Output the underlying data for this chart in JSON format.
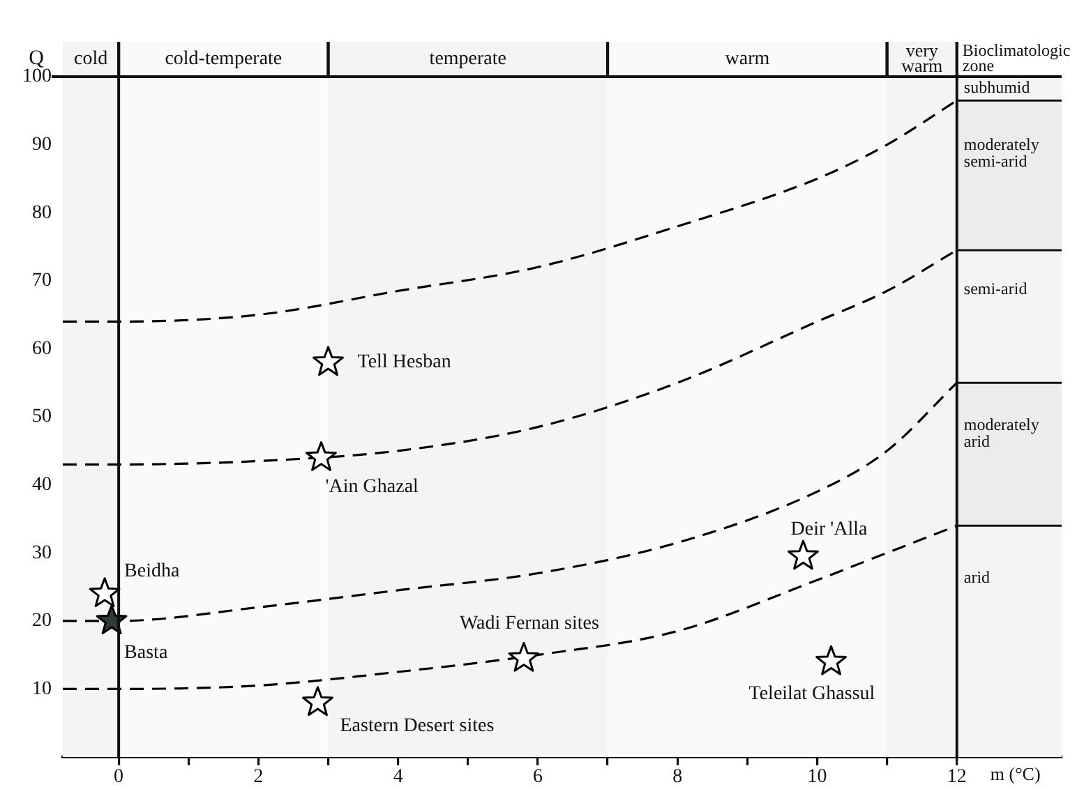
{
  "chart_data": {
    "type": "scatter",
    "xlabel": "m (°C)",
    "ylabel": "Q",
    "xlim": [
      -0.8,
      13.5
    ],
    "ylim": [
      0,
      100
    ],
    "xticks": [
      0,
      {
        "value": 1,
        "label": null
      },
      2,
      {
        "value": 3,
        "label": null
      },
      4,
      {
        "value": 5,
        "label": null
      },
      6,
      {
        "value": 7,
        "label": null
      },
      8,
      {
        "value": 9,
        "label": null
      },
      10,
      {
        "value": 11,
        "label": null
      },
      12
    ],
    "yticks": [
      10,
      20,
      30,
      40,
      50,
      60,
      70,
      80,
      90,
      100
    ],
    "grid": false,
    "legend": false,
    "marker": "star",
    "line_style": "dashed",
    "series": [
      {
        "type": "line",
        "marker": "none",
        "color": "#000000",
        "x": [
          -0.8,
          0,
          2,
          4,
          6,
          8,
          10,
          11,
          12
        ],
        "values": [
          64,
          64,
          65,
          68.5,
          72,
          78,
          85,
          90,
          96.5
        ]
      },
      {
        "type": "line",
        "marker": "none",
        "color": "#000000",
        "x": [
          -0.8,
          0,
          2,
          4,
          6,
          8,
          10,
          11,
          12
        ],
        "values": [
          43,
          43,
          43.5,
          45,
          48.5,
          55,
          64,
          68.5,
          74.5
        ]
      },
      {
        "type": "line",
        "marker": "none",
        "color": "#000000",
        "x": [
          -0.8,
          0,
          2,
          4,
          6,
          8,
          10,
          11,
          12
        ],
        "values": [
          20,
          20,
          22,
          24.5,
          27,
          31.5,
          39,
          45,
          55
        ]
      },
      {
        "type": "line",
        "marker": "none",
        "color": "#000000",
        "x": [
          -0.8,
          0,
          2,
          4,
          6,
          8,
          10,
          11,
          12
        ],
        "values": [
          10,
          10,
          10.5,
          12.5,
          15,
          18.5,
          26,
          30,
          34
        ]
      },
      {
        "name": "Tell Hesban",
        "color": "#ffffff",
        "x": [
          3.0
        ],
        "values": [
          58
        ]
      },
      {
        "name": "'Ain Ghazal",
        "color": "#ffffff",
        "x": [
          2.9
        ],
        "values": [
          44
        ]
      },
      {
        "name": "Beidha",
        "color": "#ffffff",
        "x": [
          -0.2
        ],
        "values": [
          24
        ]
      },
      {
        "name": "Basta",
        "color": "#2f3b33",
        "x": [
          -0.1
        ],
        "values": [
          20
        ]
      },
      {
        "name": "Wadi Fernan sites",
        "color": "#ffffff",
        "x": [
          5.8
        ],
        "values": [
          14.5
        ]
      },
      {
        "name": "Eastern Desert sites",
        "color": "#ffffff",
        "x": [
          2.85
        ],
        "values": [
          8
        ]
      },
      {
        "name": "Deir 'Alla",
        "color": "#ffffff",
        "x": [
          9.8
        ],
        "values": [
          29.5
        ]
      },
      {
        "name": "Teleilat Ghassul",
        "color": "#ffffff",
        "x": [
          10.2
        ],
        "values": [
          14
        ]
      }
    ],
    "bands": [
      {
        "axis": "x",
        "from": -0.8,
        "to": 0,
        "label": "cold",
        "color": "#f4f4f4"
      },
      {
        "axis": "x",
        "from": 0,
        "to": 3,
        "label": "cold-temperate",
        "color": "#fafafa"
      },
      {
        "axis": "x",
        "from": 3,
        "to": 7,
        "label": "temperate",
        "color": "#f4f4f4"
      },
      {
        "axis": "x",
        "from": 7,
        "to": 11,
        "label": "warm",
        "color": "#fafafa"
      },
      {
        "axis": "x",
        "from": 11,
        "to": 12,
        "label": "very warm",
        "color": "#f4f4f4"
      },
      {
        "axis": "y",
        "from": 96.5,
        "to": 100,
        "label": "subhumid",
        "color": "#f4f4f4"
      },
      {
        "axis": "y",
        "from": 74.5,
        "to": 96.5,
        "label": "moderately semi-arid",
        "color": "#ececec"
      },
      {
        "axis": "y",
        "from": 55,
        "to": 74.5,
        "label": "semi-arid",
        "color": "#f4f4f4"
      },
      {
        "axis": "y",
        "from": 34,
        "to": 55,
        "label": "moderately arid",
        "color": "#ececec"
      },
      {
        "axis": "y",
        "from": 0,
        "to": 34,
        "label": "arid",
        "color": "#f4f4f4"
      }
    ],
    "ref_lines": [
      {
        "axis": "x",
        "value": 0
      },
      {
        "axis": "x",
        "value": 12
      },
      {
        "axis": "y",
        "value": 96.5
      },
      {
        "axis": "y",
        "value": 74.5
      },
      {
        "axis": "y",
        "value": 55
      },
      {
        "axis": "y",
        "value": 34
      }
    ],
    "annotations": [
      "Bioclimatologic zone"
    ]
  }
}
